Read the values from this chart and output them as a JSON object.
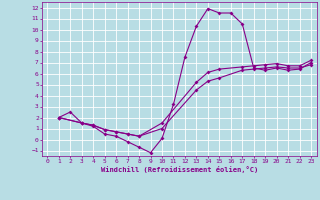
{
  "xlabel": "Windchill (Refroidissement éolien,°C)",
  "bg_color": "#b8dde4",
  "grid_color": "#ffffff",
  "line_color": "#880088",
  "xlim": [
    -0.5,
    23.5
  ],
  "ylim": [
    -1.5,
    12.5
  ],
  "xticks": [
    0,
    1,
    2,
    3,
    4,
    5,
    6,
    7,
    8,
    9,
    10,
    11,
    12,
    13,
    14,
    15,
    16,
    17,
    18,
    19,
    20,
    21,
    22,
    23
  ],
  "yticks": [
    -1,
    0,
    1,
    2,
    3,
    4,
    5,
    6,
    7,
    8,
    9,
    10,
    11,
    12
  ],
  "line1_x": [
    1,
    2,
    3,
    4,
    5,
    6,
    7,
    8,
    9,
    10,
    11,
    12,
    13,
    14,
    15,
    16,
    17,
    18,
    19,
    20,
    21,
    22,
    23
  ],
  "line1_y": [
    2.0,
    2.5,
    1.5,
    1.2,
    0.5,
    0.3,
    -0.2,
    -0.7,
    -1.2,
    0.1,
    3.2,
    7.5,
    10.3,
    11.9,
    11.5,
    11.5,
    10.5,
    6.5,
    6.3,
    6.5,
    6.3,
    6.4,
    7.0
  ],
  "line2_x": [
    1,
    3,
    4,
    5,
    6,
    7,
    8,
    10,
    13,
    14,
    15,
    17,
    18,
    19,
    20,
    21,
    22,
    23
  ],
  "line2_y": [
    2.0,
    1.5,
    1.3,
    0.9,
    0.7,
    0.5,
    0.3,
    1.0,
    4.5,
    5.3,
    5.6,
    6.3,
    6.4,
    6.5,
    6.6,
    6.5,
    6.5,
    6.8
  ],
  "line3_x": [
    1,
    3,
    4,
    5,
    6,
    7,
    8,
    10,
    13,
    14,
    15,
    17,
    18,
    19,
    20,
    21,
    22,
    23
  ],
  "line3_y": [
    2.0,
    1.5,
    1.3,
    0.9,
    0.7,
    0.5,
    0.3,
    1.5,
    5.2,
    6.1,
    6.4,
    6.6,
    6.7,
    6.8,
    6.9,
    6.7,
    6.7,
    7.2
  ]
}
